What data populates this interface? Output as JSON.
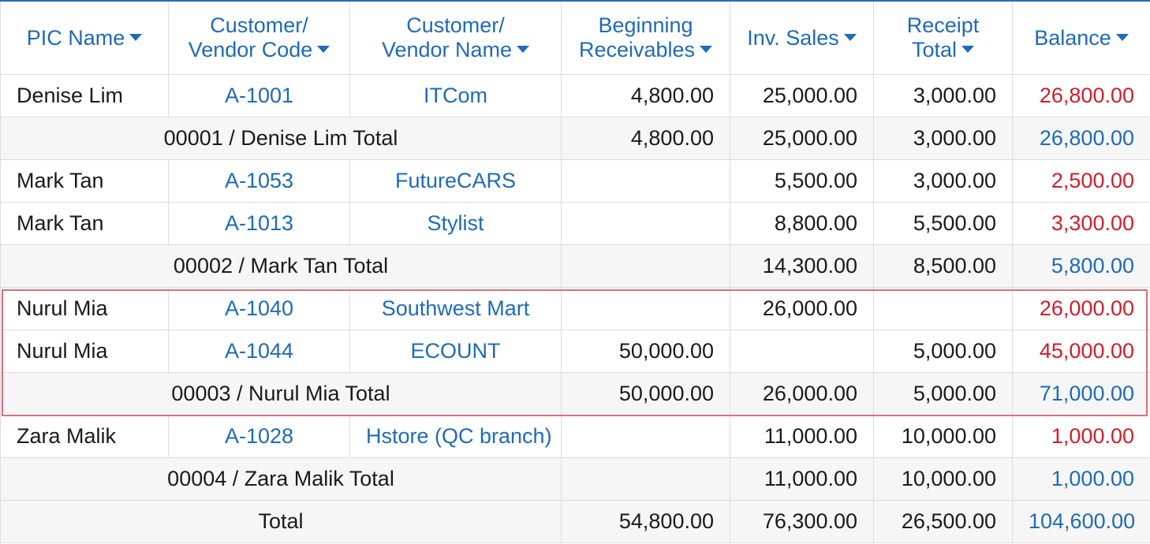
{
  "columns": [
    {
      "line1": "PIC Name",
      "line2": ""
    },
    {
      "line1": "Customer/",
      "line2": "Vendor Code"
    },
    {
      "line1": "Customer/",
      "line2": "Vendor Name"
    },
    {
      "line1": "Beginning",
      "line2": "Receivables"
    },
    {
      "line1": "Inv. Sales",
      "line2": ""
    },
    {
      "line1": "Receipt",
      "line2": "Total"
    },
    {
      "line1": "Balance",
      "line2": ""
    }
  ],
  "rows": [
    {
      "pic": "Denise Lim",
      "code": "A-1001",
      "name": "ITCom",
      "begin": "4,800.00",
      "sales": "25,000.00",
      "receipt": "3,000.00",
      "balance": "26,800.00"
    },
    {
      "subtotal_label": "00001 / Denise Lim Total",
      "begin": "4,800.00",
      "sales": "25,000.00",
      "receipt": "3,000.00",
      "balance": "26,800.00"
    },
    {
      "pic": "Mark Tan",
      "code": "A-1053",
      "name": "FutureCARS",
      "begin": "",
      "sales": "5,500.00",
      "receipt": "3,000.00",
      "balance": "2,500.00"
    },
    {
      "pic": "Mark Tan",
      "code": "A-1013",
      "name": "Stylist",
      "begin": "",
      "sales": "8,800.00",
      "receipt": "5,500.00",
      "balance": "3,300.00"
    },
    {
      "subtotal_label": "00002 / Mark Tan Total",
      "begin": "",
      "sales": "14,300.00",
      "receipt": "8,500.00",
      "balance": "5,800.00"
    },
    {
      "pic": "Nurul Mia",
      "code": "A-1040",
      "name": "Southwest Mart",
      "begin": "",
      "sales": "26,000.00",
      "receipt": "",
      "balance": "26,000.00"
    },
    {
      "pic": "Nurul Mia",
      "code": "A-1044",
      "name": "ECOUNT",
      "begin": "50,000.00",
      "sales": "",
      "receipt": "5,000.00",
      "balance": "45,000.00"
    },
    {
      "subtotal_label": "00003 / Nurul Mia Total",
      "begin": "50,000.00",
      "sales": "26,000.00",
      "receipt": "5,000.00",
      "balance": "71,000.00"
    },
    {
      "pic": "Zara Malik",
      "code": "A-1028",
      "name": "Hstore (QC branch)",
      "begin": "",
      "sales": "11,000.00",
      "receipt": "10,000.00",
      "balance": "1,000.00"
    },
    {
      "subtotal_label": "00004 / Zara Malik Total",
      "begin": "",
      "sales": "11,000.00",
      "receipt": "10,000.00",
      "balance": "1,000.00"
    },
    {
      "grand_label": "Total",
      "begin": "54,800.00",
      "sales": "76,300.00",
      "receipt": "26,500.00",
      "balance": "104,600.00"
    }
  ],
  "colors": {
    "header_text": "#1f6bb5",
    "link": "#1f6bb5",
    "balance_negative_red": "#cf1f2b",
    "subtotal_balance": "#1f6bb5",
    "highlight_border": "#d9707a"
  }
}
